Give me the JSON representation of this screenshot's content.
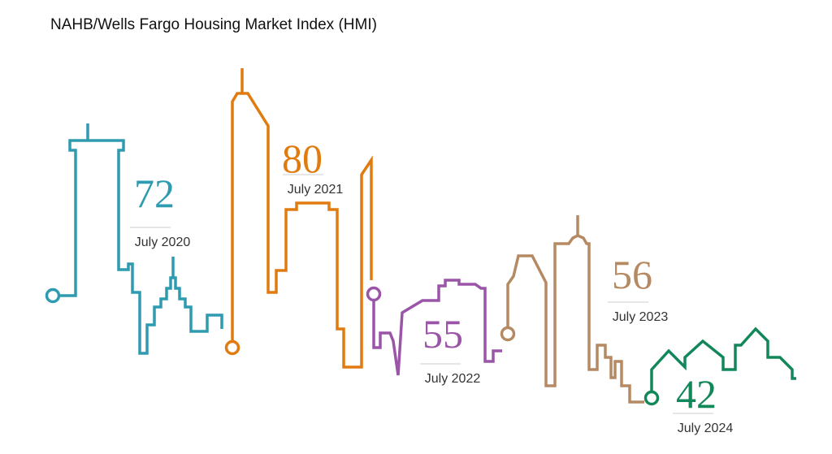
{
  "title": "NAHB/Wells Fargo Housing Market Index (HMI)",
  "items": [
    {
      "value": 72,
      "label": "July 2020",
      "color": "#2e9bb0"
    },
    {
      "value": 80,
      "label": "July 2021",
      "color": "#e07b10"
    },
    {
      "value": 55,
      "label": "July 2022",
      "color": "#9b55a8"
    },
    {
      "value": 56,
      "label": "July 2023",
      "color": "#b58a63"
    },
    {
      "value": 42,
      "label": "July 2024",
      "color": "#12875a"
    }
  ]
}
